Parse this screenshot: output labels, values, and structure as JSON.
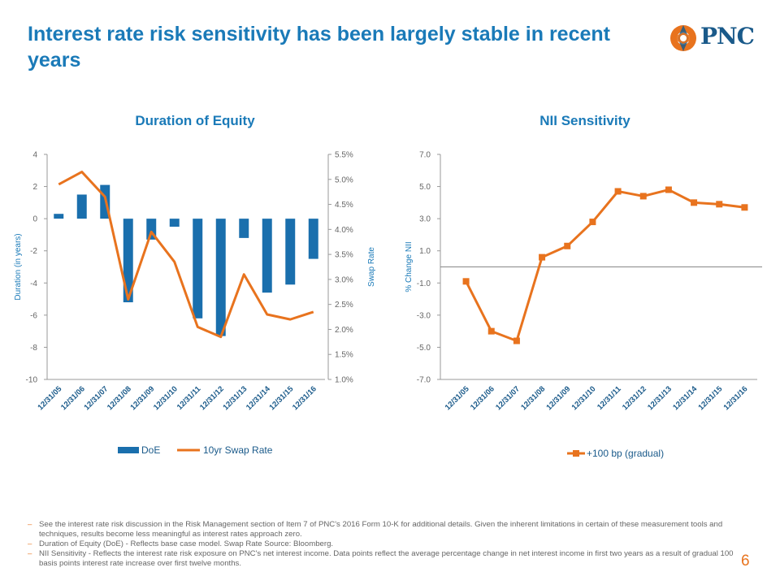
{
  "title": "Interest rate risk sensitivity has been largely stable in recent years",
  "logo": {
    "text": "PNC",
    "color": "#1a5a8a",
    "accent": "#e8731e"
  },
  "colors": {
    "title": "#1a7ab8",
    "bar": "#1a6fad",
    "line": "#e8731e",
    "axis": "#999999",
    "tick_text": "#666666"
  },
  "chart_data": [
    {
      "type": "bar",
      "title": "Duration of Equity",
      "categories": [
        "12/31/05",
        "12/31/06",
        "12/31/07",
        "12/31/08",
        "12/31/09",
        "12/31/10",
        "12/31/11",
        "12/31/12",
        "12/31/13",
        "12/31/14",
        "12/31/15",
        "12/31/16"
      ],
      "series": [
        {
          "name": "DoE",
          "type": "bar",
          "axis": "left",
          "values": [
            0.3,
            1.5,
            2.1,
            -5.2,
            -1.3,
            -0.5,
            -6.2,
            -7.3,
            -1.2,
            -4.6,
            -4.1,
            -2.5
          ]
        },
        {
          "name": "10yr Swap Rate",
          "type": "line",
          "axis": "right",
          "values": [
            4.9,
            5.15,
            4.65,
            2.6,
            3.95,
            3.35,
            2.05,
            1.85,
            3.1,
            2.3,
            2.2,
            2.35
          ]
        }
      ],
      "ylabel": "Duration (in years)",
      "ylim": [
        -10,
        4
      ],
      "yticks": [
        "4",
        "2",
        "0",
        "-2",
        "-4",
        "-6",
        "-8",
        "-10"
      ],
      "y2label": "Swap Rate",
      "y2lim": [
        1.0,
        5.5
      ],
      "y2ticks": [
        "5.5%",
        "5.0%",
        "4.5%",
        "4.0%",
        "3.5%",
        "3.0%",
        "2.5%",
        "2.0%",
        "1.5%",
        "1.0%"
      ],
      "legend": [
        "DoE",
        "10yr Swap Rate"
      ]
    },
    {
      "type": "line",
      "title": "NII Sensitivity",
      "categories": [
        "12/31/05",
        "12/31/06",
        "12/31/07",
        "12/31/08",
        "12/31/09",
        "12/31/10",
        "12/31/11",
        "12/31/12",
        "12/31/13",
        "12/31/14",
        "12/31/15",
        "12/31/16"
      ],
      "series": [
        {
          "name": "+100 bp (gradual)",
          "values": [
            -0.9,
            -4.0,
            -4.6,
            0.6,
            1.3,
            2.8,
            4.7,
            4.4,
            4.8,
            4.0,
            3.9,
            3.7
          ]
        }
      ],
      "ylabel": "% Change NII",
      "ylim": [
        -7.0,
        7.0
      ],
      "yticks": [
        "7.0",
        "5.0",
        "3.0",
        "1.0",
        "-1.0",
        "-3.0",
        "-5.0",
        "-7.0"
      ],
      "reference_line": 0,
      "legend": [
        "+100 bp (gradual)"
      ]
    }
  ],
  "footnotes": [
    "See the interest rate risk discussion in the Risk Management section of Item 7 of PNC's 2016 Form 10-K for additional details. Given the inherent limitations in certain of these measurement tools and techniques, results become less meaningful as interest rates approach zero.",
    "Duration of Equity (DoE) - Reflects base case model. Swap Rate Source: Bloomberg.",
    "NII Sensitivity - Reflects the interest rate risk exposure on PNC's net interest income. Data points reflect the average percentage change in net interest income in first two years as a result of gradual 100 basis points interest rate increase over first twelve months."
  ],
  "page_number": "6"
}
